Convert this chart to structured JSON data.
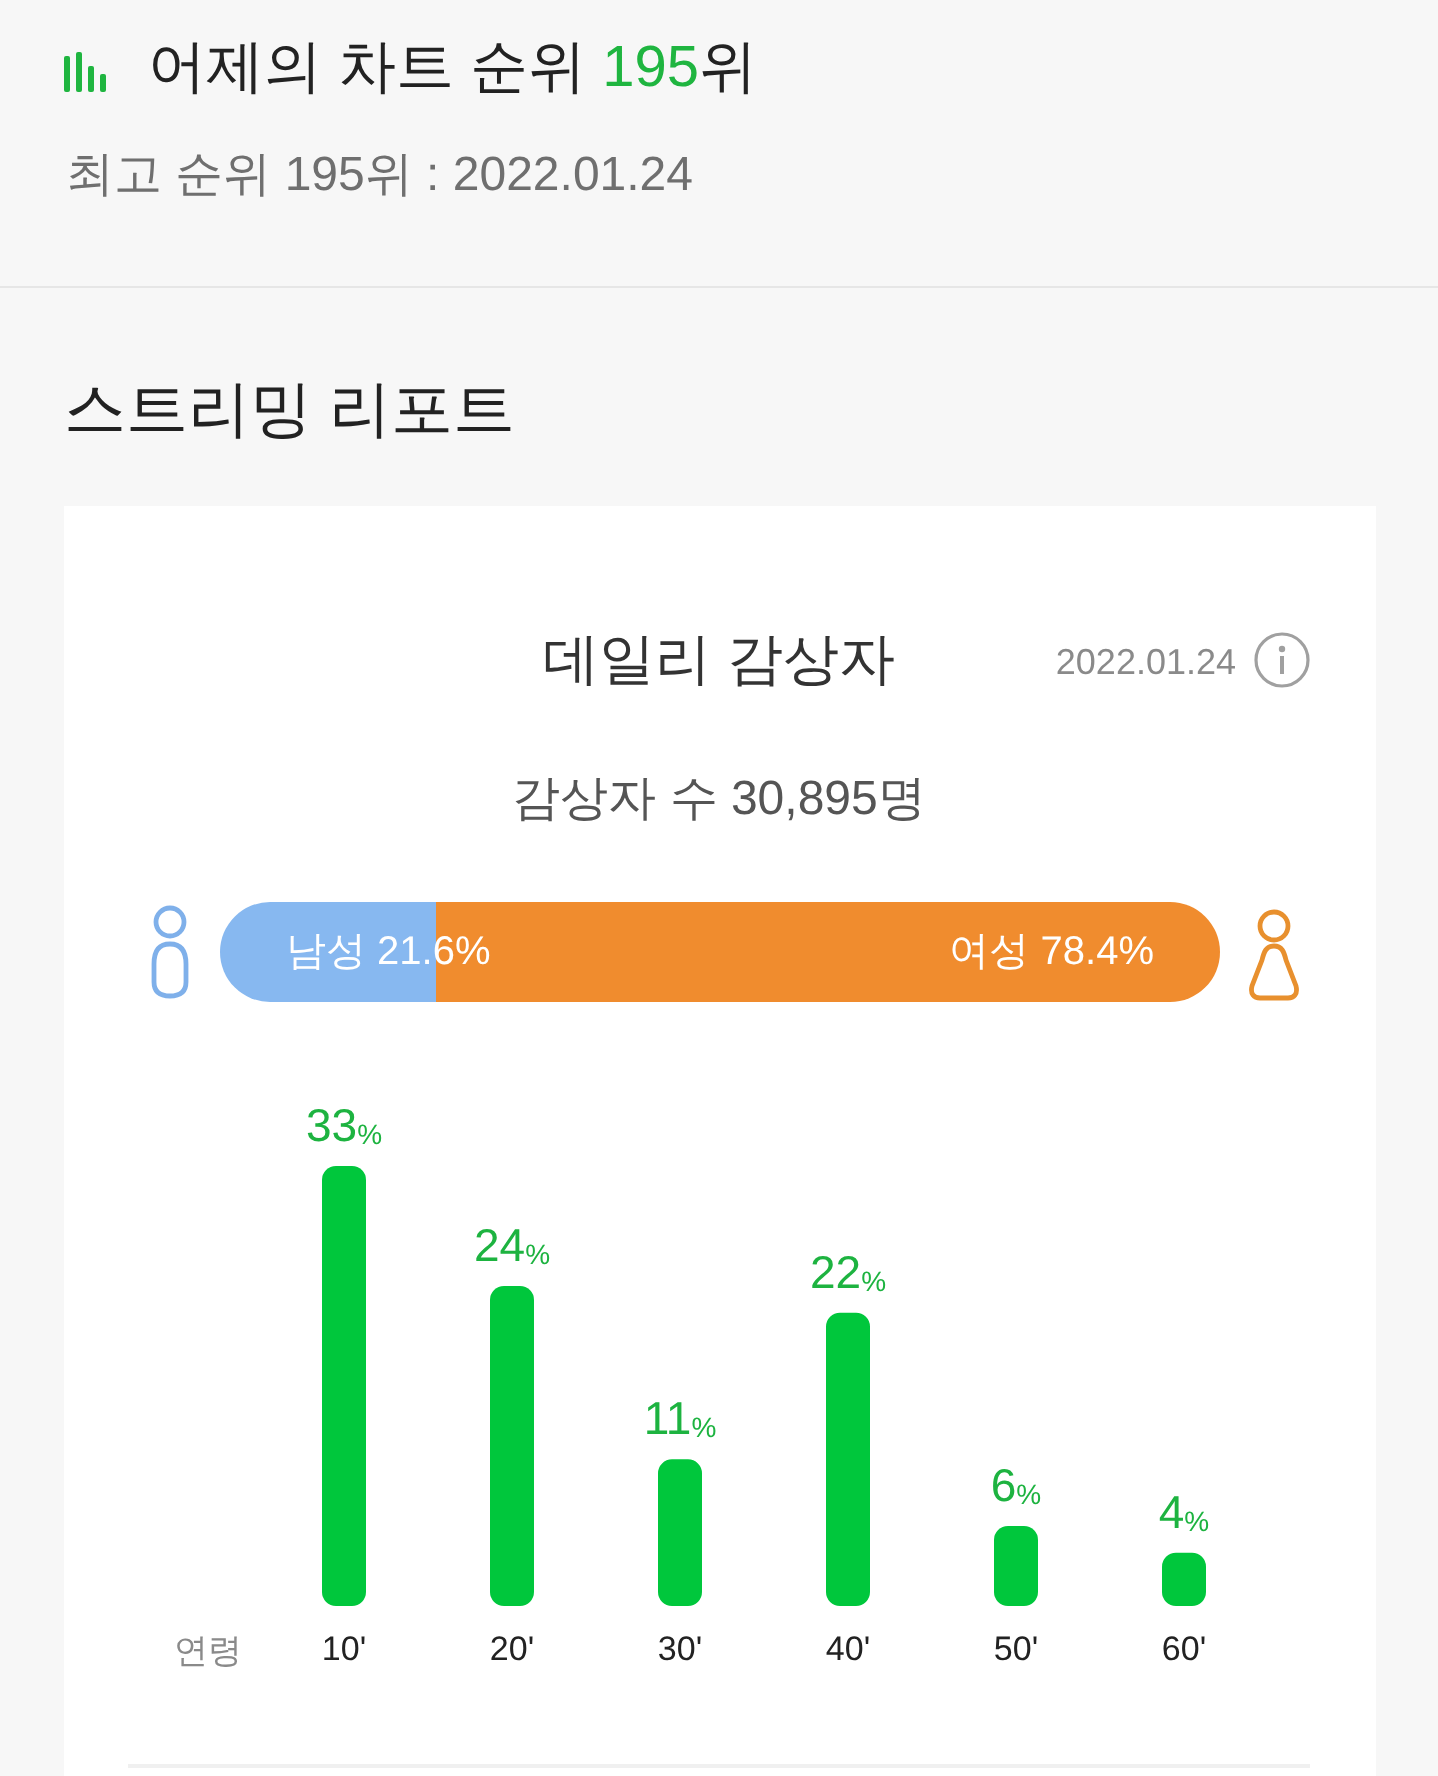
{
  "chart_data": [
    {
      "type": "other",
      "title": "어제의 차트 순위 195위",
      "subtitle": "최고 순위 195위 : 2022.01.24",
      "annotations": [
        "스트리밍 리포트"
      ]
    },
    {
      "type": "bar",
      "orientation": "horizontal",
      "stacked": true,
      "title": "데일리 감상자",
      "subtitle": "감상자 수 30,895명",
      "annotations": [
        "2022.01.24"
      ],
      "categories": [
        null
      ],
      "series": [
        {
          "color": "#87b8f0",
          "values": [
            21.6
          ],
          "value_labels": [
            "남성 21.6%"
          ]
        },
        {
          "color": "#f08c2e",
          "values": [
            78.4
          ],
          "value_labels": [
            "여성 78.4%"
          ]
        }
      ]
    },
    {
      "type": "bar",
      "xlabel": "연령",
      "categories": [
        "10'",
        "20'",
        "30'",
        "40'",
        "50'",
        "60'"
      ],
      "values": [
        33,
        24,
        11,
        22,
        6,
        4
      ],
      "color": "#00c73c",
      "value_labels": [
        "33%",
        "24%",
        "11%",
        "22%",
        "6%",
        "4%"
      ]
    }
  ]
}
